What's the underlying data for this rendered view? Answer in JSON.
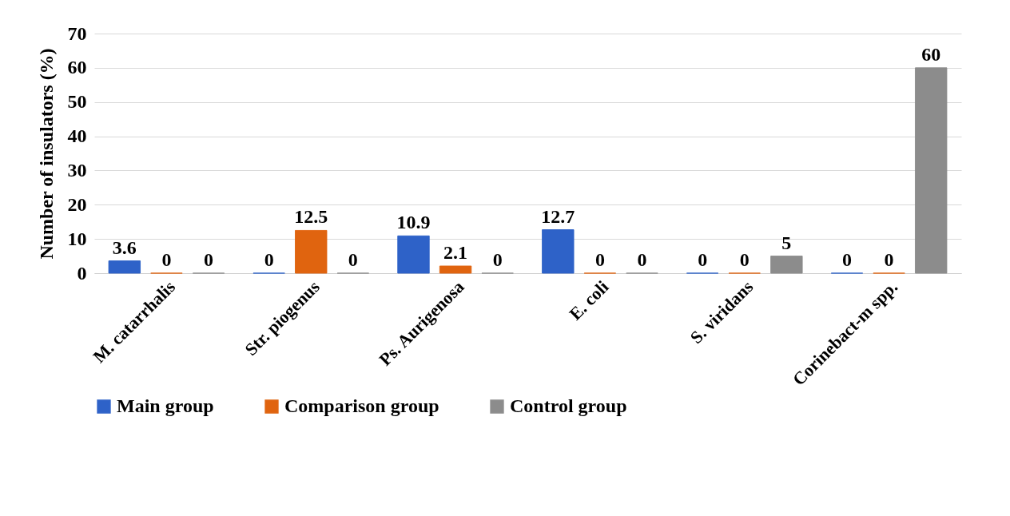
{
  "chart_data": {
    "type": "bar",
    "ylabel": "Number of insulators (%)",
    "categories": [
      "M. catarrhalis",
      "Str. piogenus",
      "Ps. Aurigenosa",
      "E. coli",
      "S. viridans",
      "Corinebact-m spp."
    ],
    "series": [
      {
        "name": "Main group",
        "color": "#2e62c8",
        "values": [
          3.6,
          0,
          10.9,
          12.7,
          0,
          0
        ]
      },
      {
        "name": "Comparison group",
        "color": "#e0640f",
        "values": [
          0,
          12.5,
          2.1,
          0,
          0,
          0
        ]
      },
      {
        "name": "Control group",
        "color": "#8c8c8c",
        "values": [
          0,
          0,
          0,
          0,
          5,
          60
        ]
      }
    ],
    "ylim": [
      0,
      70
    ],
    "yticks": [
      0,
      10,
      20,
      30,
      40,
      50,
      60,
      70
    ],
    "grid": "y",
    "legend": "bottom",
    "data_labels": true
  }
}
